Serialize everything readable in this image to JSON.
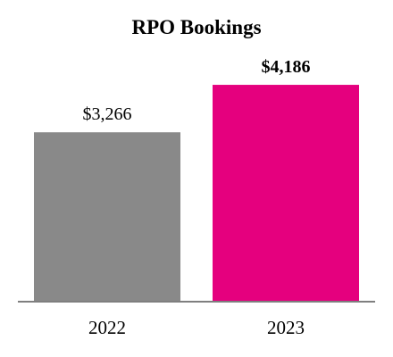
{
  "chart_data": {
    "type": "bar",
    "title": "RPO Bookings",
    "categories": [
      "2022",
      "2023"
    ],
    "values": [
      3266,
      4186
    ],
    "data_labels": [
      "$3,266",
      "$4,186"
    ],
    "bold_labels": [
      false,
      true
    ],
    "colors": [
      "#898989",
      "#e5007e"
    ],
    "axis_color": "#7f7f7f",
    "ylim": [
      0,
      5000
    ],
    "grid": false,
    "legend": "none"
  }
}
